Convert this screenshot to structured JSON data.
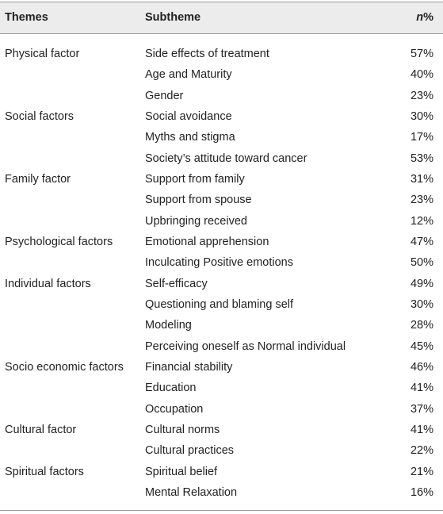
{
  "header": {
    "columns": [
      "Themes",
      "Subtheme"
    ],
    "n_column": {
      "italic": "n",
      "text": "%"
    }
  },
  "groups": [
    {
      "theme": "Physical factor",
      "items": [
        {
          "subtheme": "Side effects of treatment",
          "n": "57%"
        },
        {
          "subtheme": "Age and Maturity",
          "n": "40%"
        },
        {
          "subtheme": "Gender",
          "n": "23%"
        }
      ]
    },
    {
      "theme": "Social factors",
      "items": [
        {
          "subtheme": "Social avoidance",
          "n": "30%"
        },
        {
          "subtheme": "Myths and stigma",
          "n": "17%"
        },
        {
          "subtheme": "Society’s attitude toward cancer",
          "n": "53%"
        }
      ]
    },
    {
      "theme": "Family factor",
      "items": [
        {
          "subtheme": "Support from family",
          "n": "31%"
        },
        {
          "subtheme": "Support from spouse",
          "n": "23%"
        },
        {
          "subtheme": "Upbringing received",
          "n": "12%"
        }
      ]
    },
    {
      "theme": "Psychological factors",
      "items": [
        {
          "subtheme": "Emotional apprehension",
          "n": "47%"
        },
        {
          "subtheme": "Inculcating Positive emotions",
          "n": "50%"
        }
      ]
    },
    {
      "theme": "Individual factors",
      "items": [
        {
          "subtheme": "Self-efficacy",
          "n": "49%"
        },
        {
          "subtheme": "Questioning and blaming self",
          "n": "30%"
        },
        {
          "subtheme": "Modeling",
          "n": "28%"
        },
        {
          "subtheme": "Perceiving oneself as Normal individual",
          "n": "45%"
        }
      ]
    },
    {
      "theme": "Socio economic factors",
      "items": [
        {
          "subtheme": "Financial stability",
          "n": "46%"
        },
        {
          "subtheme": "Education",
          "n": "41%"
        },
        {
          "subtheme": "Occupation",
          "n": "37%"
        }
      ]
    },
    {
      "theme": "Cultural factor",
      "items": [
        {
          "subtheme": "Cultural norms",
          "n": "41%"
        },
        {
          "subtheme": "Cultural practices",
          "n": "22%"
        }
      ]
    },
    {
      "theme": "Spiritual factors",
      "items": [
        {
          "subtheme": "Spiritual belief",
          "n": "21%"
        },
        {
          "subtheme": "Mental Relaxation",
          "n": "16%"
        }
      ]
    }
  ]
}
